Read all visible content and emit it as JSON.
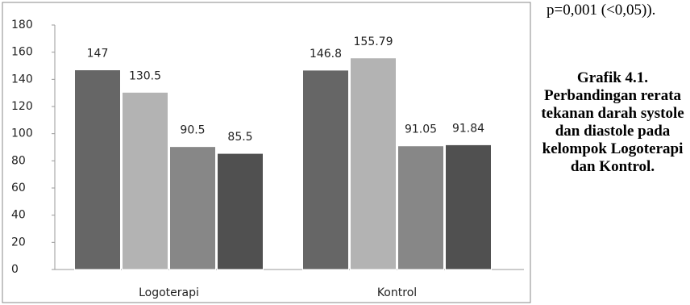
{
  "text_above": "p=0,001 (<0,05)).",
  "caption": "Grafik 4.1. Perbandingan rerata tekanan darah systole dan diastole pada kelompok Logoterapi dan Kontrol.",
  "chart_data": {
    "type": "bar",
    "categories": [
      "Logoterapi",
      "Kontrol"
    ],
    "series": [
      {
        "color": "#666666",
        "values": [
          147,
          146.8
        ]
      },
      {
        "color": "#b3b3b3",
        "values": [
          130.5,
          155.79
        ]
      },
      {
        "color": "#878787",
        "values": [
          90.5,
          91.05
        ]
      },
      {
        "color": "#505050",
        "values": [
          85.5,
          91.84
        ]
      }
    ],
    "ylim": [
      0,
      180
    ],
    "yticks": [
      0,
      20,
      40,
      60,
      80,
      100,
      120,
      140,
      160,
      180
    ],
    "grid": false
  }
}
